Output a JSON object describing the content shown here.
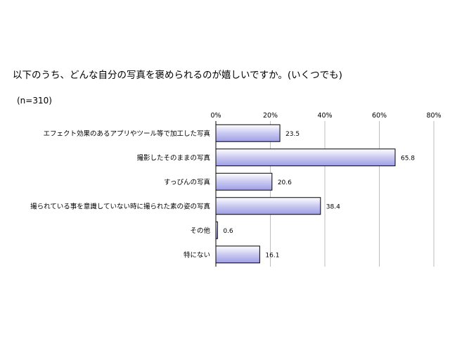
{
  "header": {
    "title": "以下のうち、どんな自分の写真を褒められるのが嬉しいですか。(いくつでも)",
    "sample": "(n=310)"
  },
  "chart_data": {
    "type": "bar",
    "orientation": "horizontal",
    "categories": [
      "エフェクト効果のあるアプリやツール等で加工した写真",
      "撮影したそのままの写真",
      "すっぴんの写真",
      "撮られている事を意識していない時に撮られた素の姿の写真",
      "その他",
      "特にない"
    ],
    "values": [
      23.5,
      65.8,
      20.6,
      38.4,
      0.6,
      16.1
    ],
    "value_labels": [
      "23.5",
      "65.8",
      "20.6",
      "38.4",
      "0.6",
      "16.1"
    ],
    "xlim": [
      0,
      80
    ],
    "ticks": [
      "0%",
      "20%",
      "40%",
      "60%",
      "80%"
    ],
    "tick_values": [
      0,
      20,
      40,
      60,
      80
    ],
    "grid": true,
    "legend": "none",
    "bar_gradient": [
      "#ffffff",
      "#9e9ee6"
    ],
    "bar_border": "#000000",
    "grid_color": "#bdbdbd"
  }
}
